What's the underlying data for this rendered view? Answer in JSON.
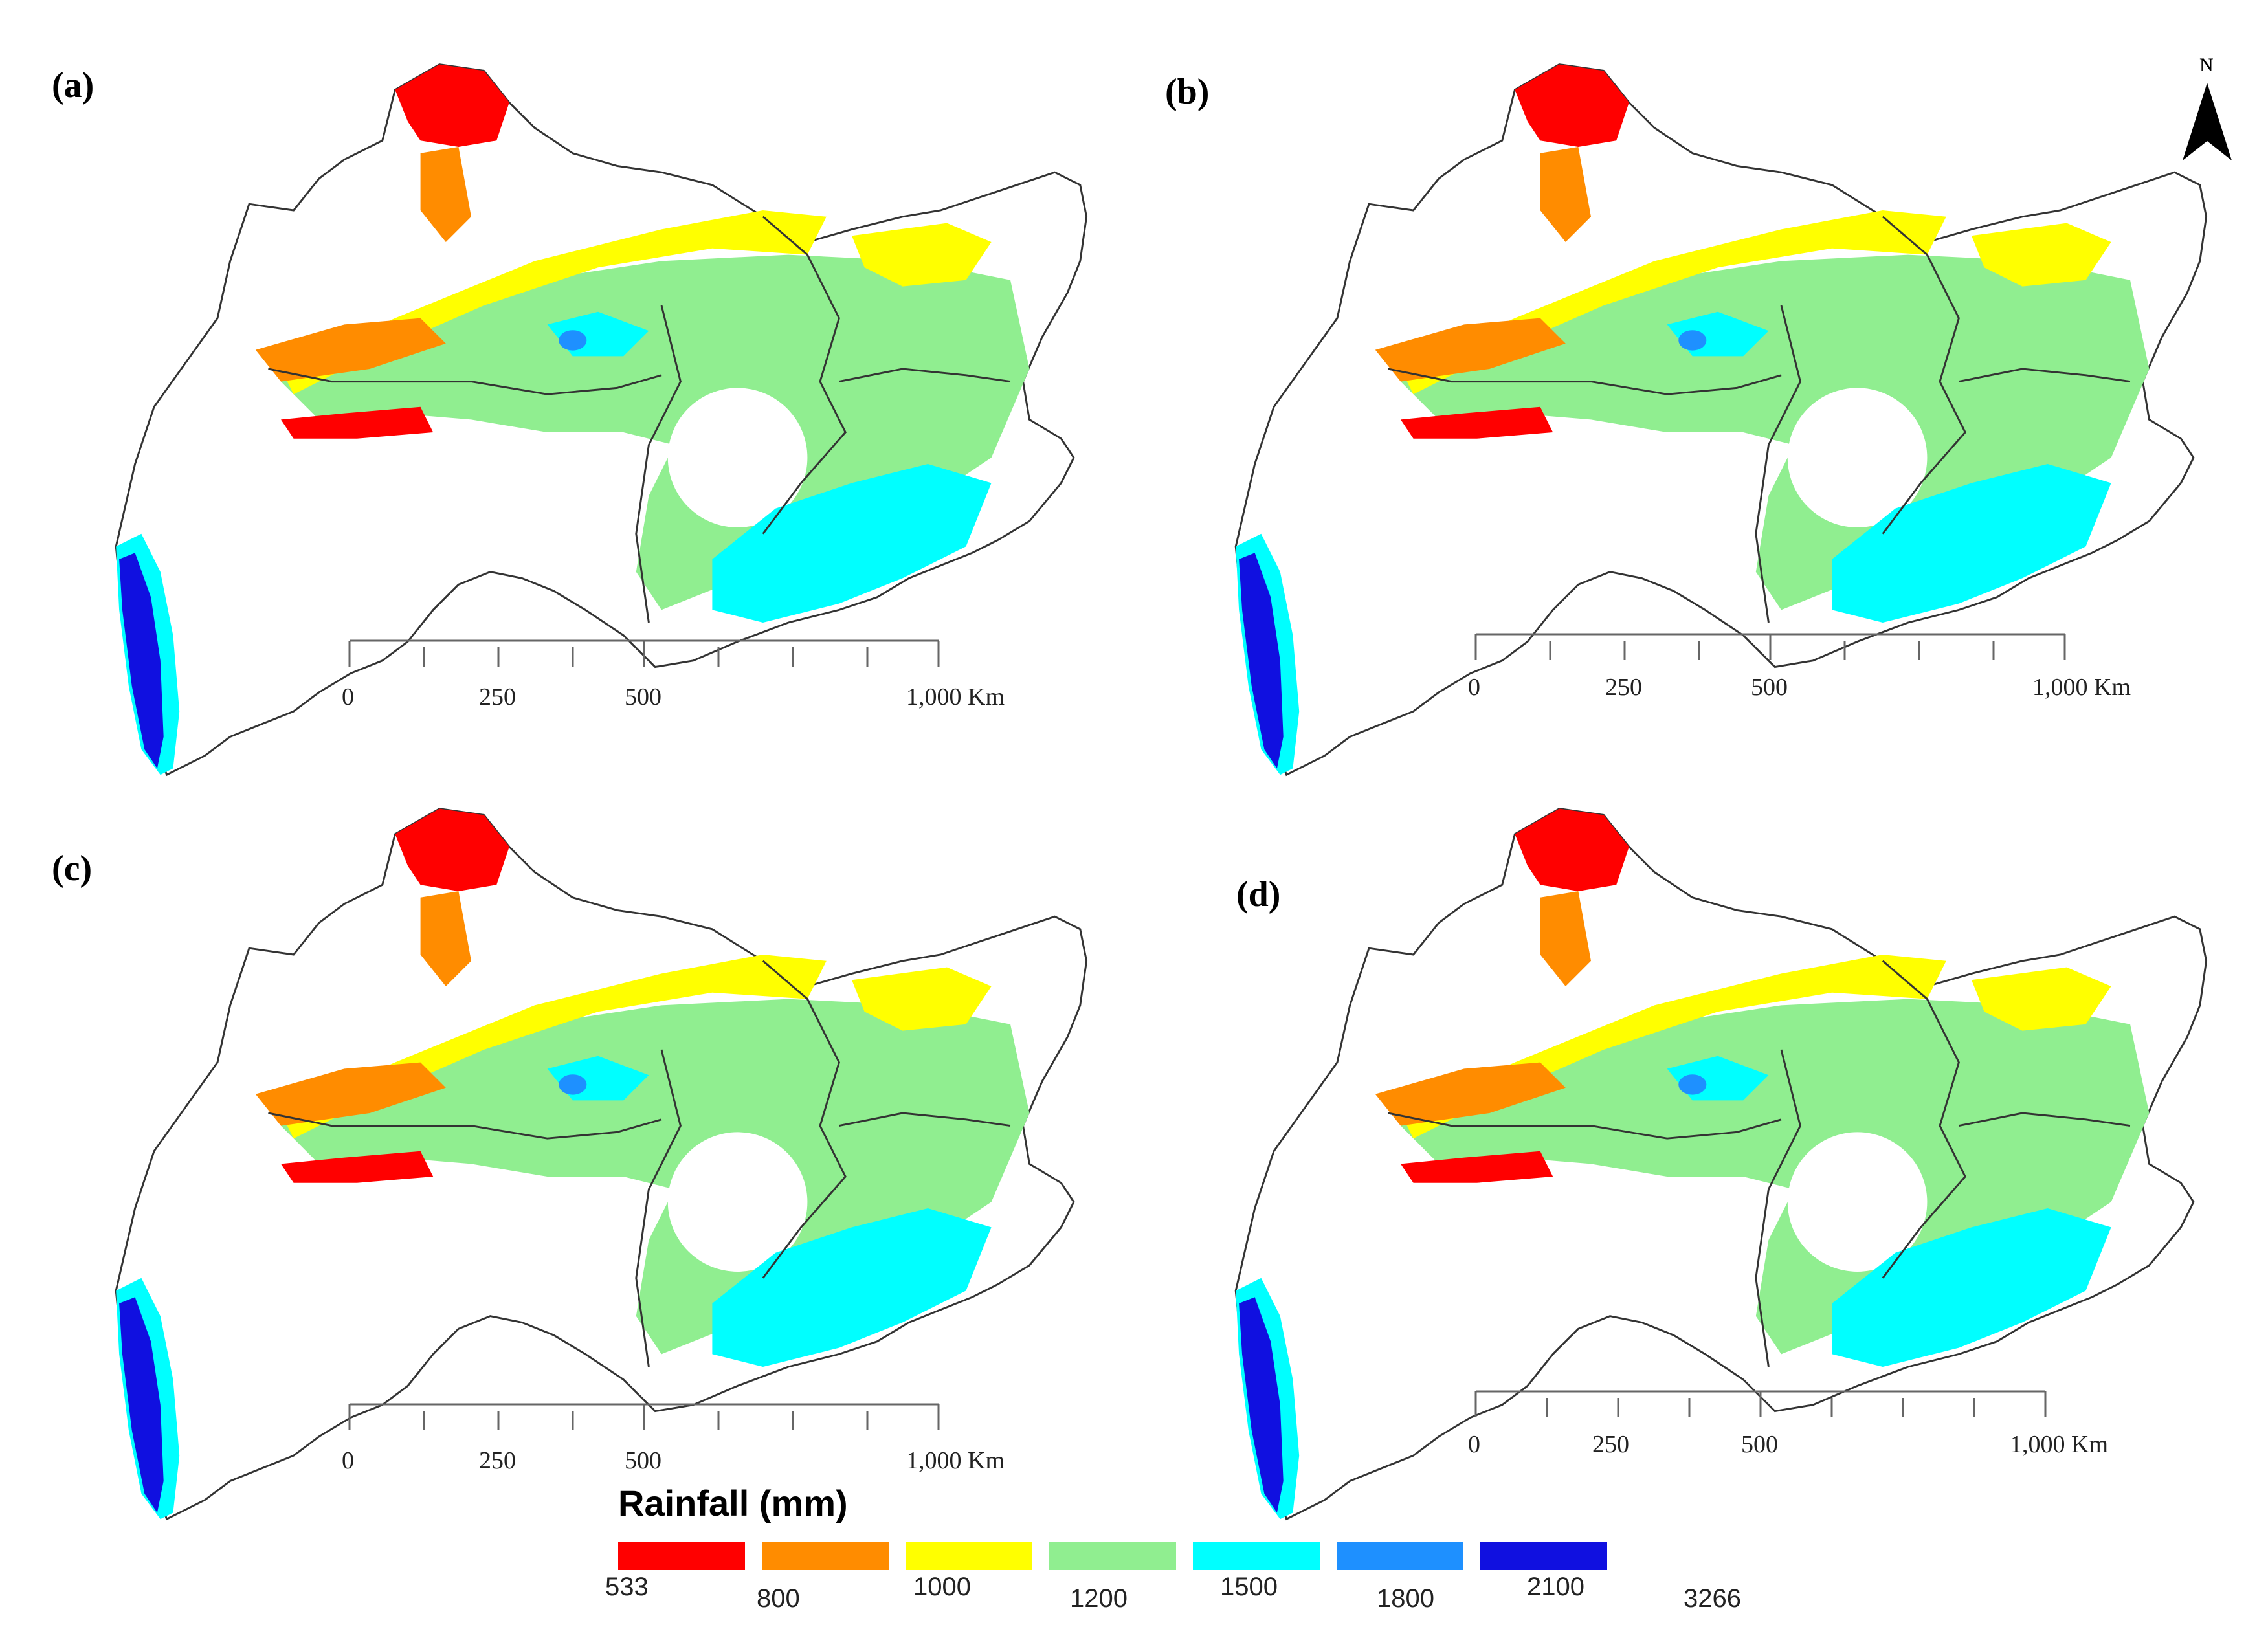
{
  "panels": [
    {
      "label": "(a)"
    },
    {
      "label": "(b)"
    },
    {
      "label": "(c)"
    },
    {
      "label": "(d)"
    }
  ],
  "scale_bar": {
    "ticks": [
      "0",
      "250",
      "500",
      "1,000 Km"
    ]
  },
  "north_arrow": {
    "label": "N"
  },
  "legend": {
    "title": "Rainfall (mm)",
    "classes": [
      {
        "color": "#ff0000"
      },
      {
        "color": "#ff8c00"
      },
      {
        "color": "#ffff00"
      },
      {
        "color": "#90ee90"
      },
      {
        "color": "#00ffff"
      },
      {
        "color": "#1e90ff"
      },
      {
        "color": "#1010e0"
      }
    ],
    "breaks": [
      "533",
      "800",
      "1000",
      "1200",
      "1500",
      "1800",
      "2100",
      "3266"
    ]
  }
}
